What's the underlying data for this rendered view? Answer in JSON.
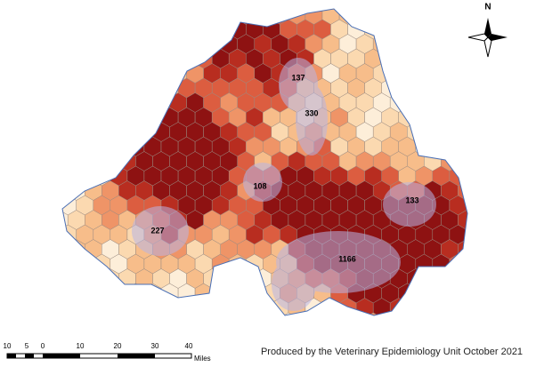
{
  "map": {
    "labels": [
      "137",
      "330",
      "108",
      "133",
      "227",
      "1166"
    ],
    "north": "N",
    "scale": {
      "ticks": [
        "10",
        "5",
        "0",
        "10",
        "20",
        "30",
        "40"
      ],
      "unit": "Miles"
    },
    "credit": "Produced by the Veterinary Epidemiology Unit October 2021"
  }
}
